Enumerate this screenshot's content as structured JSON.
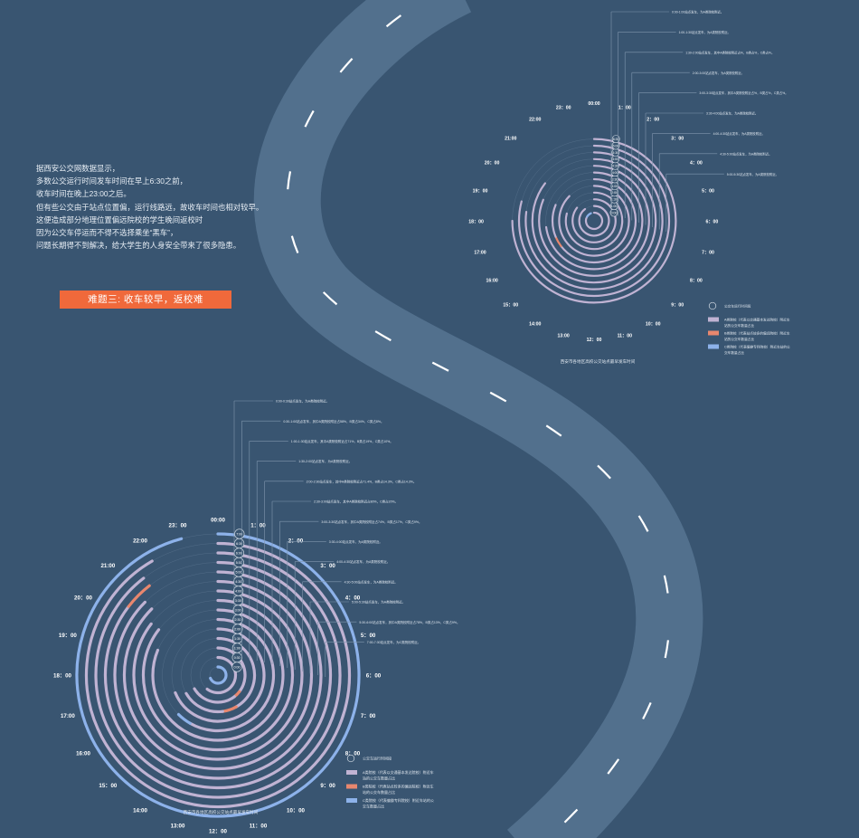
{
  "intro": {
    "lines": [
      "据西安公交网数据显示，",
      "多数公交运行时间发车时间在早上6:30之前，",
      "收车时间在晚上23:00之后。",
      "但有些公交由于站点位置偏，运行线路远，故收车时间也相对较早。",
      "这便造成部分地理位置偏远院校的学生晚间返校时",
      "因为公交车停运而不得不选择乘坐“黑车”，",
      "问题长期得不到解决，给大学生的人身安全带来了很多隐患。"
    ]
  },
  "banner": "难题三: 收车较早，返校难",
  "colors": {
    "background": "#395571",
    "road": "#52708d",
    "a_type": "#c0b3d3",
    "b_type": "#e8876e",
    "c_type": "#8db2ea",
    "guide": "#8096ae"
  },
  "chart_data": [
    {
      "type": "radial-bar",
      "caption": "西安市各地区高校公交站点最早发车时间",
      "hour_labels": [
        "00:00",
        "1：00",
        "2：00",
        "3：00",
        "4：00",
        "5：00",
        "6：00",
        "7：00",
        "8：00",
        "9：00",
        "10：00",
        "11：00",
        "12：00",
        "13:00",
        "14:00",
        "15：00",
        "16:00",
        "17:00",
        "18：00",
        "19：00",
        "20：00",
        "21:00",
        "22:00",
        "23：00"
      ],
      "time_labels": [
        "0:00",
        "1:00",
        "1:30",
        "2:00",
        "3:00",
        "3:30",
        "4:00",
        "4:30",
        "5:00",
        "5:30",
        "6:00",
        "6:30"
      ],
      "rings": [
        {
          "label": "0:00",
          "segments": [
            {
              "type": "a",
              "from": 0.0,
              "to": 20.0
            },
            {
              "type": "c",
              "from": 20.0,
              "to": 22.5
            }
          ]
        },
        {
          "label": "1:00",
          "segments": [
            {
              "type": "a",
              "from": 0.0,
              "to": 21.5
            }
          ]
        },
        {
          "label": "1:30",
          "segments": [
            {
              "type": "a",
              "from": 0.0,
              "to": 20.5
            }
          ]
        },
        {
          "label": "2:00",
          "segments": [
            {
              "type": "a",
              "from": 0.0,
              "to": 19.0
            }
          ]
        },
        {
          "label": "3:00",
          "segments": [
            {
              "type": "a",
              "from": 0.0,
              "to": 21.0
            }
          ]
        },
        {
          "label": "3:30",
          "segments": [
            {
              "type": "a",
              "from": 0.0,
              "to": 15.5
            },
            {
              "type": "b",
              "from": 15.5,
              "to": 16.5
            },
            {
              "type": "a",
              "from": 16.5,
              "to": 19.5
            }
          ]
        },
        {
          "label": "4:00",
          "segments": [
            {
              "type": "a",
              "from": 0.0,
              "to": 17.5
            }
          ]
        },
        {
          "label": "4:30",
          "segments": [
            {
              "type": "a",
              "from": 0.0,
              "to": 19.5
            }
          ]
        },
        {
          "label": "5:00",
          "segments": [
            {
              "type": "a",
              "from": 0.0,
              "to": 20.5
            }
          ]
        },
        {
          "label": "5:30",
          "segments": [
            {
              "type": "a",
              "from": 0.0,
              "to": 18.5
            }
          ]
        },
        {
          "label": "6:00",
          "segments": [
            {
              "type": "a",
              "from": 0.0,
              "to": 19.0
            }
          ]
        },
        {
          "label": "6:30",
          "segments": [
            {
              "type": "a",
              "from": 0.0,
              "to": 18.0
            }
          ]
        }
      ],
      "annotations": [
        "0:00-1:00站点发车，为A类院校附近。",
        "1:00-1:30站点发车，为A类院校附近。",
        "1:30-2:00站点发车，其中A类院校附近占%，B类占%，C类占%。",
        "2:00-3:00站点发车，为A类院校附近。",
        "3:00-3:30站点发车，其中A类院校附近占%，B类占%，C类占%。",
        "3:30-4:00站点发车，为A类院校附近。",
        "4:00-4:30站点发车，为A类院校附近。",
        "4:30-5:00站点发车，为A类院校附近。",
        "5:00-5:30站点发车，为A类院校附近。"
      ],
      "legend": [
        {
          "type": "ring",
          "label": "公交车运行时间段"
        },
        {
          "type": "a",
          "label": "A类院校（代表以交通基本发达院校）附近车站的公交车数量占比"
        },
        {
          "type": "b",
          "label": "B类院校（代表站点较多的偏远院校）附近车站的公交车数量占比"
        },
        {
          "type": "c",
          "label": "C类院校（代表偏僻专科院校）附近车站的公交车数量占比"
        }
      ]
    },
    {
      "type": "radial-bar",
      "caption": "西安市各地区高校公交站点最早发车时间",
      "hour_labels": [
        "00:00",
        "1：00",
        "2：00",
        "3：00",
        "4：00",
        "5：00",
        "6：00",
        "7：00",
        "8：00",
        "9：00",
        "10：00",
        "11：00",
        "12：00",
        "13:00",
        "14:00",
        "15：00",
        "16:00",
        "17:00",
        "18：00",
        "19：00",
        "20：00",
        "21:00",
        "22:00",
        "23：00"
      ],
      "time_labels": [
        "0:00",
        "0:30",
        "1:00",
        "1:30",
        "2:00",
        "2:30",
        "3:00",
        "3:30",
        "4:00",
        "4:30",
        "5:00",
        "5:30",
        "6:00",
        "6:30",
        "7:00"
      ],
      "rings": [
        {
          "label": "0:00",
          "segments": [
            {
              "type": "c",
              "from": 0.0,
              "to": 16.5
            }
          ]
        },
        {
          "label": "0:30",
          "segments": [
            {
              "type": "a",
              "from": 0.0,
              "to": 14.5
            }
          ]
        },
        {
          "label": "1:00",
          "segments": [
            {
              "type": "a",
              "from": 0.0,
              "to": 8.5
            },
            {
              "type": "b",
              "from": 8.5,
              "to": 9.5
            },
            {
              "type": "a",
              "from": 9.5,
              "to": 16.0
            }
          ]
        },
        {
          "label": "1:30",
          "segments": [
            {
              "type": "a",
              "from": 0.0,
              "to": 10.0
            },
            {
              "type": "b",
              "from": 10.0,
              "to": 11.5
            },
            {
              "type": "a",
              "from": 11.5,
              "to": 16.0
            }
          ]
        },
        {
          "label": "2:00",
          "segments": [
            {
              "type": "a",
              "from": 0.0,
              "to": 16.5
            }
          ]
        },
        {
          "label": "2:30",
          "segments": [
            {
              "type": "a",
              "from": 0.0,
              "to": 14.0
            },
            {
              "type": "c",
              "from": 14.0,
              "to": 15.0
            }
          ]
        },
        {
          "label": "3:00",
          "segments": [
            {
              "type": "a",
              "from": 0.0,
              "to": 19.5
            }
          ]
        },
        {
          "label": "3:30",
          "segments": [
            {
              "type": "a",
              "from": 0.0,
              "to": 20.5
            }
          ]
        },
        {
          "label": "4:00",
          "segments": [
            {
              "type": "a",
              "from": 0.0,
              "to": 20.5
            }
          ]
        },
        {
          "label": "4:30",
          "segments": [
            {
              "type": "a",
              "from": 0.0,
              "to": 21.0
            }
          ]
        },
        {
          "label": "5:00",
          "segments": [
            {
              "type": "a",
              "from": 0.0,
              "to": 21.0
            }
          ]
        },
        {
          "label": "5:30",
          "segments": [
            {
              "type": "a",
              "from": 0.0,
              "to": 20.5
            },
            {
              "type": "b",
              "from": 20.5,
              "to": 21.5
            }
          ]
        },
        {
          "label": "6:00",
          "segments": [
            {
              "type": "a",
              "from": 0.0,
              "to": 21.5
            }
          ]
        },
        {
          "label": "6:30",
          "segments": [
            {
              "type": "a",
              "from": 0.0,
              "to": 22.0
            }
          ]
        },
        {
          "label": "7:00",
          "segments": [
            {
              "type": "c",
              "from": 0.0,
              "to": 23.0
            }
          ]
        }
      ],
      "annotations": [
        "0:00-0:30站点发车，为A类院校附近。",
        "0:30-1:00站点发车，其中A类院校附近占58%，B类占34%，C类占8%。",
        "1:00-1:30站点发车，其中A类院校附近占71%，B类占19%，C类占10%。",
        "1:30-2:00站点发车，为A类院校附近。",
        "2:00-2:30站点发车，其中A类院校附近占71.4%，B类占14.3%，C类占14.3%。",
        "2:30-3:00站点发车，其中A类院校附近占80%，C类占20%。",
        "3:00-3:30站点发车，其中A类院校附近占74%，B类占17%，C类占9%。",
        "3:30-4:00站点发车，为A类院校附近。",
        "4:00-4:30站点发车，为A类院校附近。",
        "4:30-5:00站点发车，为A类院校附近。",
        "5:00-5:30站点发车，为A类院校附近。",
        "5:30-6:00站点发车，其中A类院校附近占78%，B类占13%，C类占9%。",
        "7:00-7:30站点发车，为C类院校附近。"
      ],
      "legend": [
        {
          "type": "ring",
          "label": "公交车运行时间段"
        },
        {
          "type": "a",
          "label": "A类院校（代表以交通基本发达院校）附近车站的公交车数量占比"
        },
        {
          "type": "b",
          "label": "B类院校（代表站点较多的偏远院校）附近车站的公交车数量占比"
        },
        {
          "type": "c",
          "label": "C类院校（代表偏僻专科院校）附近车站的公交车数量占比"
        }
      ]
    }
  ]
}
